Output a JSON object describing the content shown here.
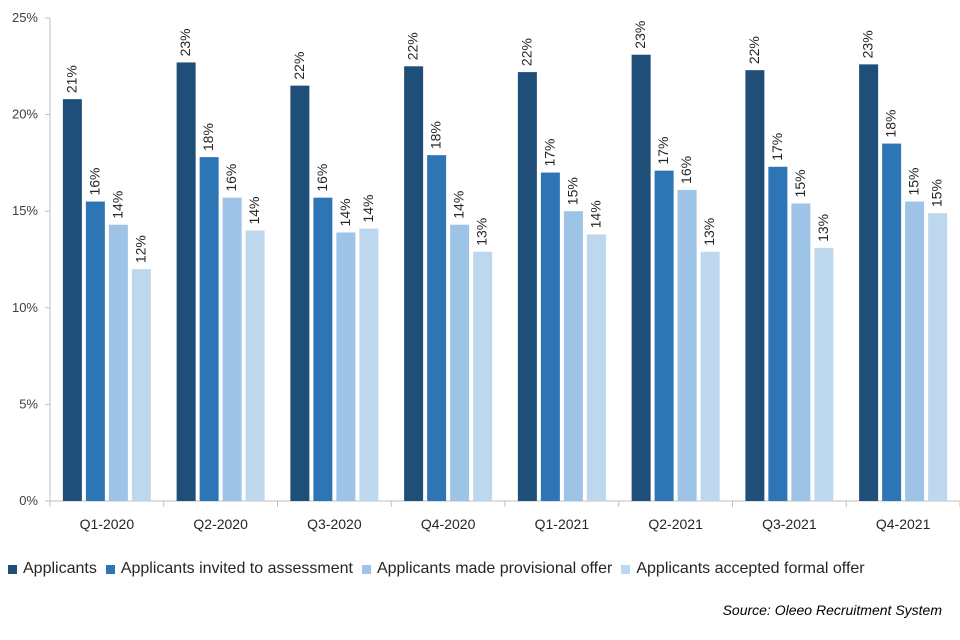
{
  "chart_data": {
    "type": "bar",
    "categories": [
      "Q1-2020",
      "Q2-2020",
      "Q3-2020",
      "Q4-2020",
      "Q1-2021",
      "Q2-2021",
      "Q3-2021",
      "Q4-2021"
    ],
    "series": [
      {
        "name": "Applicants",
        "color": "#1f4e79",
        "values": [
          20.8,
          22.7,
          21.5,
          22.5,
          22.2,
          23.1,
          22.3,
          22.6
        ],
        "labels": [
          "21%",
          "23%",
          "22%",
          "22%",
          "22%",
          "23%",
          "22%",
          "23%"
        ]
      },
      {
        "name": "Applicants invited to assessment",
        "color": "#2e75b6",
        "values": [
          15.5,
          17.8,
          15.7,
          17.9,
          17.0,
          17.1,
          17.3,
          18.5
        ],
        "labels": [
          "16%",
          "18%",
          "16%",
          "18%",
          "17%",
          "17%",
          "17%",
          "18%"
        ]
      },
      {
        "name": "Applicants made provisional offer",
        "color": "#9dc3e6",
        "values": [
          14.3,
          15.7,
          13.9,
          14.3,
          15.0,
          16.1,
          15.4,
          15.5
        ],
        "labels": [
          "14%",
          "16%",
          "14%",
          "14%",
          "15%",
          "16%",
          "15%",
          "15%"
        ]
      },
      {
        "name": "Applicants accepted formal offer",
        "color": "#bdd7ee",
        "values": [
          12.0,
          14.0,
          14.1,
          12.9,
          13.8,
          12.9,
          13.1,
          14.9
        ],
        "labels": [
          "12%",
          "14%",
          "14%",
          "13%",
          "14%",
          "13%",
          "13%",
          "15%"
        ]
      }
    ],
    "ylim": [
      0,
      25
    ],
    "yticks": [
      "0%",
      "5%",
      "10%",
      "15%",
      "20%",
      "25%"
    ],
    "grid": false,
    "legend_position": "bottom",
    "source": "Source: Oleeo Recruitment System"
  }
}
